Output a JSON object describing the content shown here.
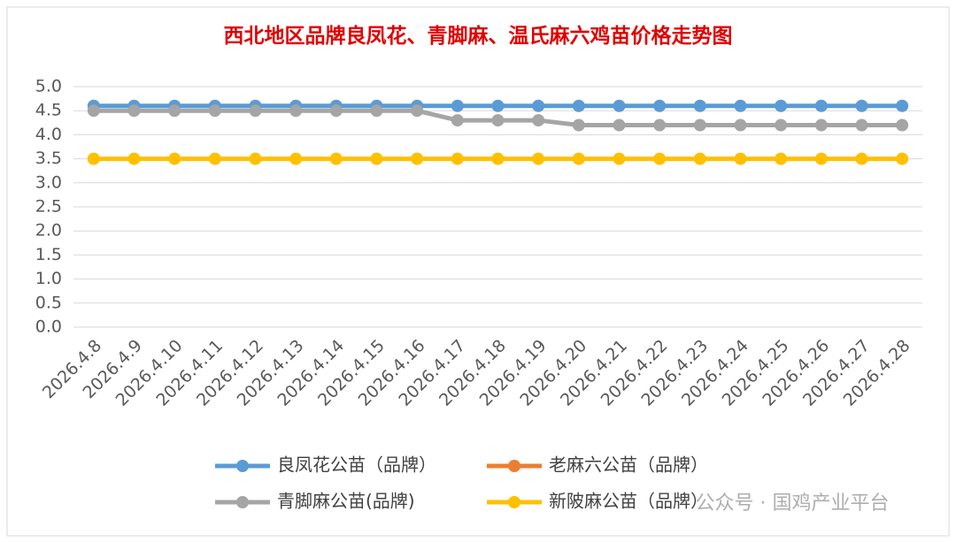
{
  "chart_data": {
    "type": "line",
    "title": "西北地区品牌良凤花、青脚麻、温氏麻六鸡苗价格走势图",
    "categories": [
      "2026.4.8",
      "2026.4.9",
      "2026.4.10",
      "2026.4.11",
      "2026.4.12",
      "2026.4.13",
      "2026.4.14",
      "2026.4.15",
      "2026.4.16",
      "2026.4.17",
      "2026.4.18",
      "2026.4.19",
      "2026.4.20",
      "2026.4.21",
      "2026.4.22",
      "2026.4.23",
      "2026.4.24",
      "2026.4.25",
      "2026.4.26",
      "2026.4.27",
      "2026.4.28"
    ],
    "series": [
      {
        "name": "良凤花公苗（品牌）",
        "color": "#5b9bd5",
        "values": [
          4.6,
          4.6,
          4.6,
          4.6,
          4.6,
          4.6,
          4.6,
          4.6,
          4.6,
          4.6,
          4.6,
          4.6,
          4.6,
          4.6,
          4.6,
          4.6,
          4.6,
          4.6,
          4.6,
          4.6,
          4.6
        ]
      },
      {
        "name": "老麻六公苗（品牌）",
        "color": "#ed7d31",
        "values": [
          null,
          null,
          null,
          null,
          null,
          null,
          null,
          null,
          null,
          null,
          null,
          null,
          null,
          null,
          null,
          null,
          null,
          null,
          null,
          null,
          null
        ]
      },
      {
        "name": "青脚麻公苗(品牌)",
        "color": "#a5a5a5",
        "values": [
          4.5,
          4.5,
          4.5,
          4.5,
          4.5,
          4.5,
          4.5,
          4.5,
          4.5,
          4.3,
          4.3,
          4.3,
          4.2,
          4.2,
          4.2,
          4.2,
          4.2,
          4.2,
          4.2,
          4.2,
          4.2
        ]
      },
      {
        "name": "新陂麻公苗（品牌）",
        "color": "#ffc000",
        "values": [
          3.5,
          3.5,
          3.5,
          3.5,
          3.5,
          3.5,
          3.5,
          3.5,
          3.5,
          3.5,
          3.5,
          3.5,
          3.5,
          3.5,
          3.5,
          3.5,
          3.5,
          3.5,
          3.5,
          3.5,
          3.5
        ]
      }
    ],
    "ylim": [
      0,
      5
    ],
    "yticks": [
      {
        "value": 0,
        "label": "0.0"
      },
      0.5,
      {
        "value": 1,
        "label": "1.0"
      },
      1.5,
      {
        "value": 2,
        "label": "2.0"
      },
      2.5,
      {
        "value": 3,
        "label": "3.0"
      },
      3.5,
      {
        "value": 4,
        "label": "4.0"
      },
      4.5,
      {
        "value": 5,
        "label": "5.0"
      }
    ],
    "grid": true,
    "watermark": "公众号 · 国鸡产业平台"
  }
}
